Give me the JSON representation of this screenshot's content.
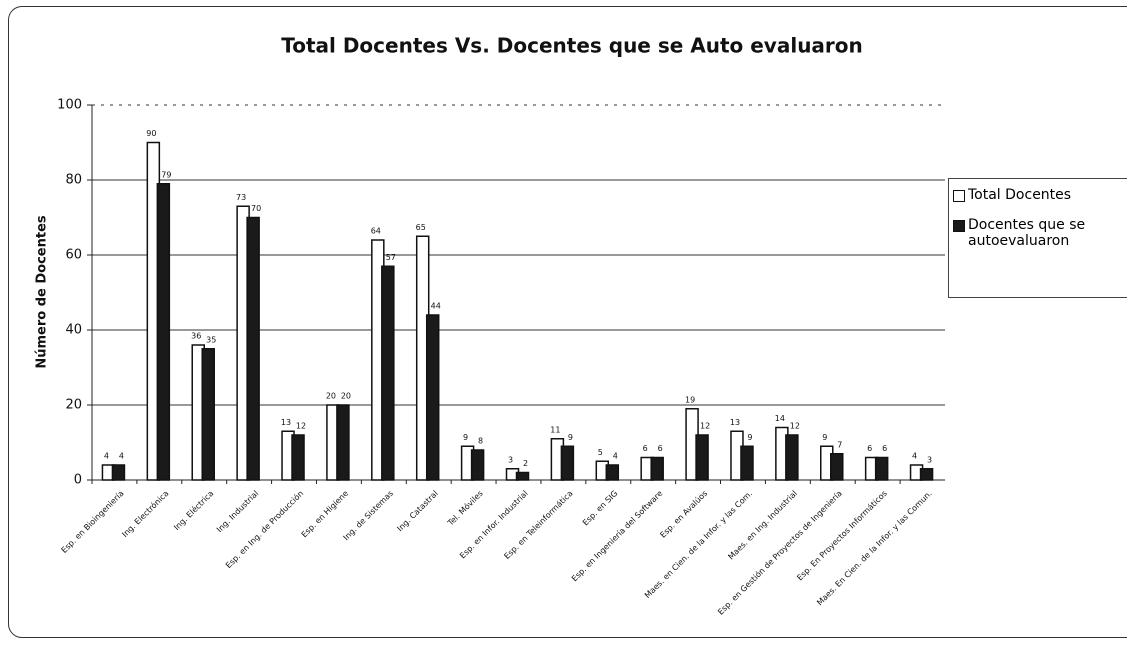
{
  "chart_data": {
    "type": "bar",
    "title": "Total Docentes Vs. Docentes que se Auto evaluaron",
    "y_label": "Número de Docentes",
    "categories": [
      "Esp. en Bioingeniería",
      "Ing. Electrónica",
      "Ing. Eléctrica",
      "Ing. Industrial",
      "Esp. en Ing. de Producción",
      "Esp. en Higiene",
      "Ing. de Sistemas",
      "Ing. Catastral",
      "Tel. Móviles",
      "Esp. en Infor. Industrial",
      "Esp. en Teleinformática",
      "Esp. en SIG",
      "Esp. en Ingeniería del Software",
      "Esp. en Avalúos",
      "Maes. en Cien. de la Infor. y las Com.",
      "Maes. en Ing. Industrial",
      "Esp. en Gestión de Proyectos de Ingeniería",
      "Esp. En Proyectos Informáticos",
      "Maes. En Cien. de la Infor. y las Comun."
    ],
    "series": [
      {
        "name": "Total Docentes",
        "color": "#ffffff",
        "values": [
          4,
          90,
          36,
          73,
          13,
          20,
          64,
          65,
          9,
          3,
          11,
          5,
          6,
          19,
          13,
          14,
          9,
          6,
          4
        ]
      },
      {
        "name": "Docentes que se autoevaluaron",
        "color": "#1a1a1a",
        "values": [
          4,
          79,
          35,
          70,
          12,
          20,
          57,
          44,
          8,
          2,
          9,
          4,
          6,
          12,
          9,
          12,
          7,
          6,
          3
        ]
      }
    ],
    "ylim": [
      0,
      100
    ],
    "yticks": [
      0,
      20,
      40,
      60,
      80,
      100
    ],
    "grid": true,
    "legend": "right"
  }
}
